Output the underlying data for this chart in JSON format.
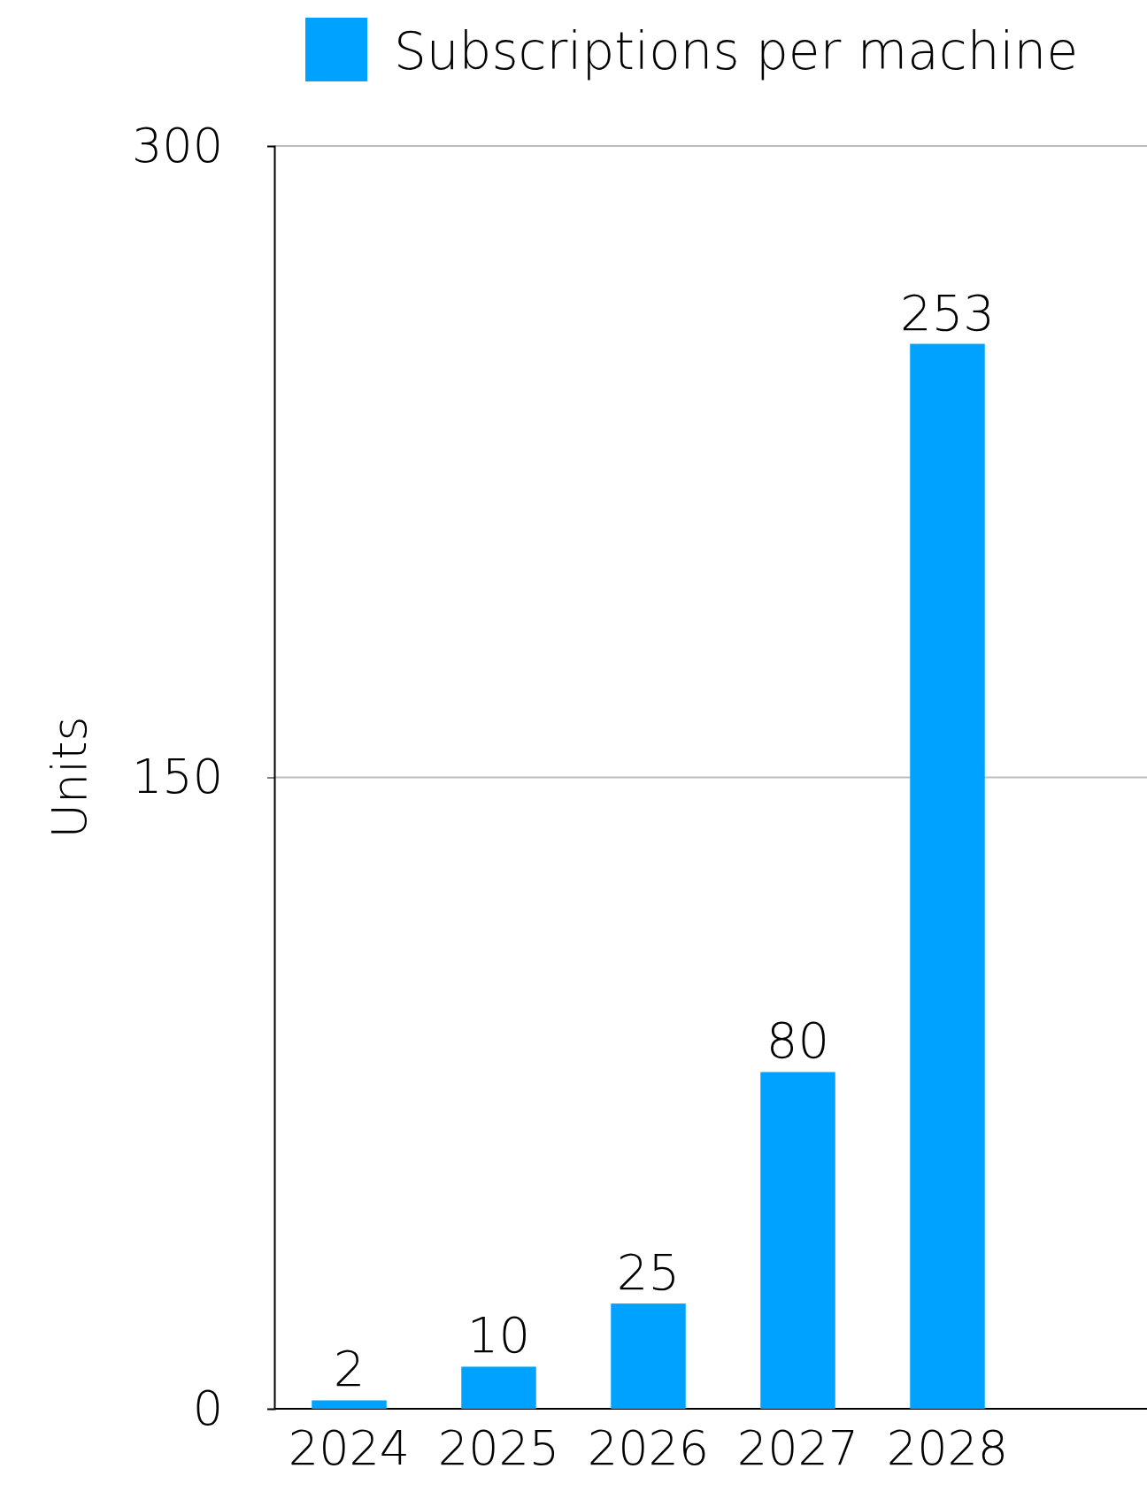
{
  "chart_data": {
    "type": "bar",
    "categories": [
      "2024",
      "2025",
      "2026",
      "2027",
      "2028"
    ],
    "series": [
      {
        "name": "Subscriptions per machine",
        "color": "#00a2ff",
        "values": [
          2,
          10,
          25,
          80,
          253
        ]
      }
    ],
    "ylabel": "Units",
    "ylim": [
      0,
      300
    ],
    "yticks": [
      0,
      150,
      300
    ],
    "grid": "y",
    "legend": "top",
    "data_labels": true
  }
}
